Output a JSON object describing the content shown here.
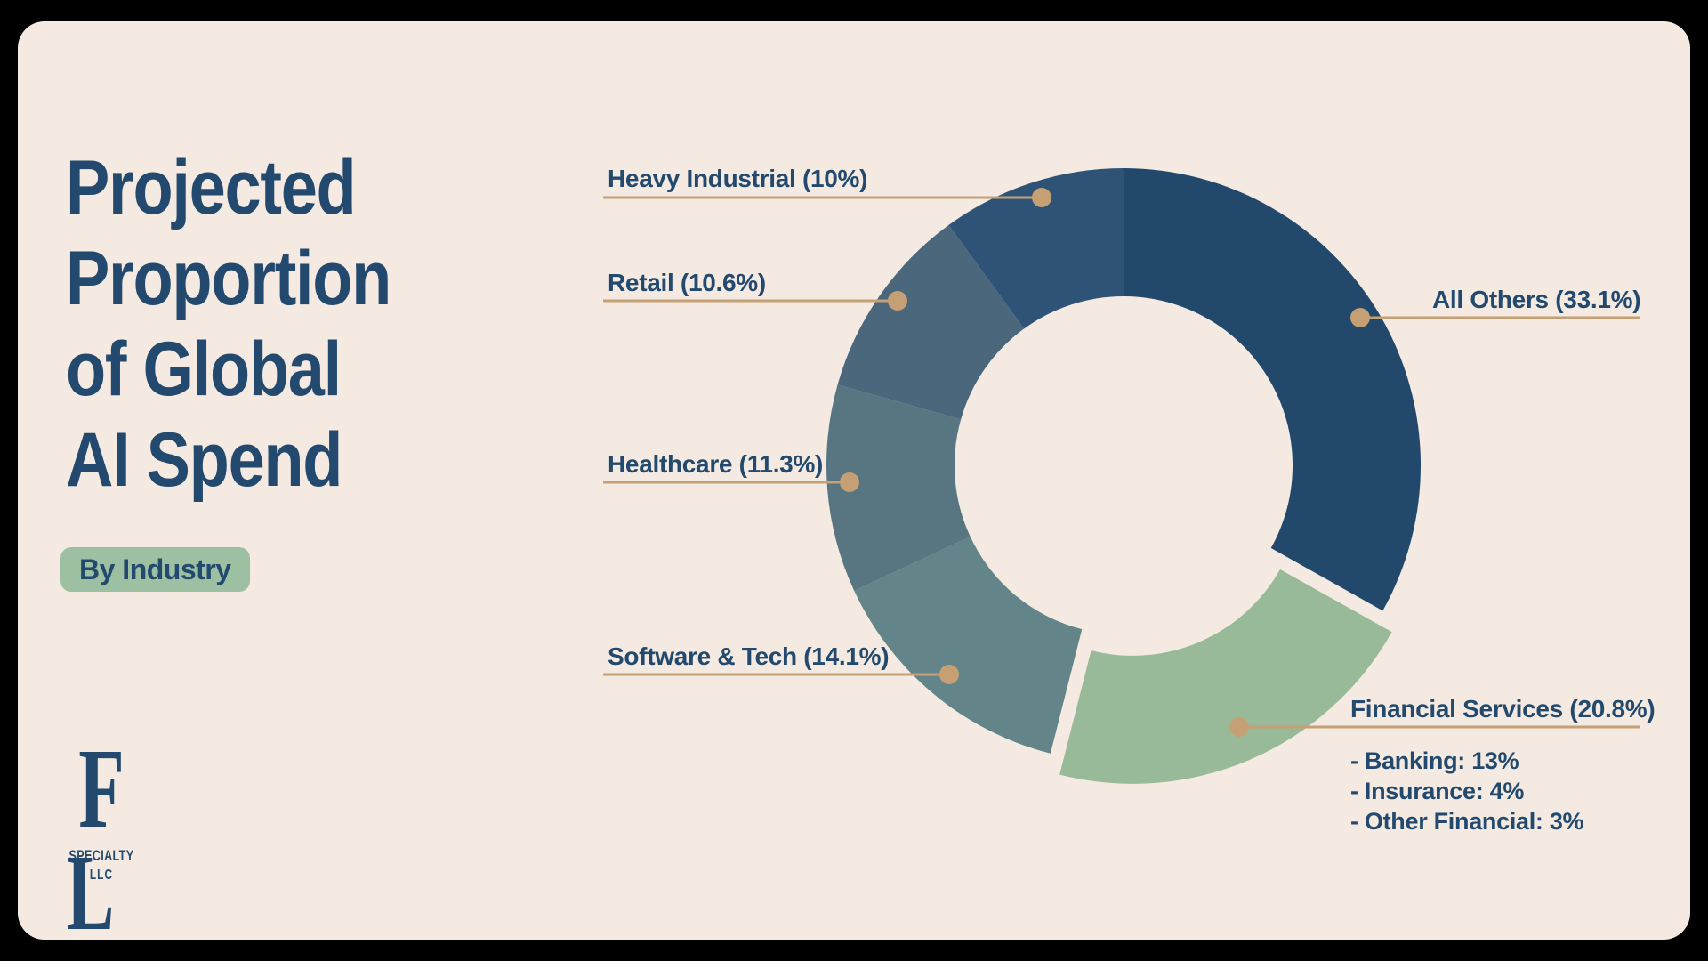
{
  "frame": {
    "background_color": "#000000",
    "panel_color": "#F4EAE2"
  },
  "header": {
    "title": "Projected\nProportion\nof Global\nAI Spend",
    "badge": "By Industry",
    "title_color": "#234A6E",
    "badge_bg": "#9DBFA2"
  },
  "logo": {
    "monogram_f": "F",
    "monogram_l": "L",
    "line1": "SPECIALTY",
    "line2": "LLC"
  },
  "chart_data": {
    "type": "pie",
    "donut": true,
    "title": "Projected Proportion of Global AI Spend",
    "subtitle": "By Industry",
    "direction": "clockwise",
    "start_angle_deg": 0,
    "leader_color": "#C6A075",
    "label_color": "#234A6E",
    "slices": [
      {
        "label": "All Others",
        "value": 33.1,
        "display": "All Others (33.1%)",
        "color": "#22486C",
        "exploded": false
      },
      {
        "label": "Financial Services",
        "value": 20.8,
        "display": "Financial Services (20.8%)",
        "color": "#99BA98",
        "exploded": true,
        "breakdown": [
          "- Banking: 13%",
          "- Insurance: 4%",
          "- Other Financial: 3%"
        ]
      },
      {
        "label": "Software & Tech",
        "value": 14.1,
        "display": "Software & Tech (14.1%)",
        "color": "#63858A",
        "exploded": false
      },
      {
        "label": "Healthcare",
        "value": 11.3,
        "display": "Healthcare (11.3%)",
        "color": "#587682",
        "exploded": false
      },
      {
        "label": "Retail",
        "value": 10.6,
        "display": "Retail (10.6%)",
        "color": "#4B677C",
        "exploded": false
      },
      {
        "label": "Heavy Industrial",
        "value": 10.0,
        "display": "Heavy Industrial (10%)",
        "color": "#2F5376",
        "exploded": false
      }
    ]
  }
}
